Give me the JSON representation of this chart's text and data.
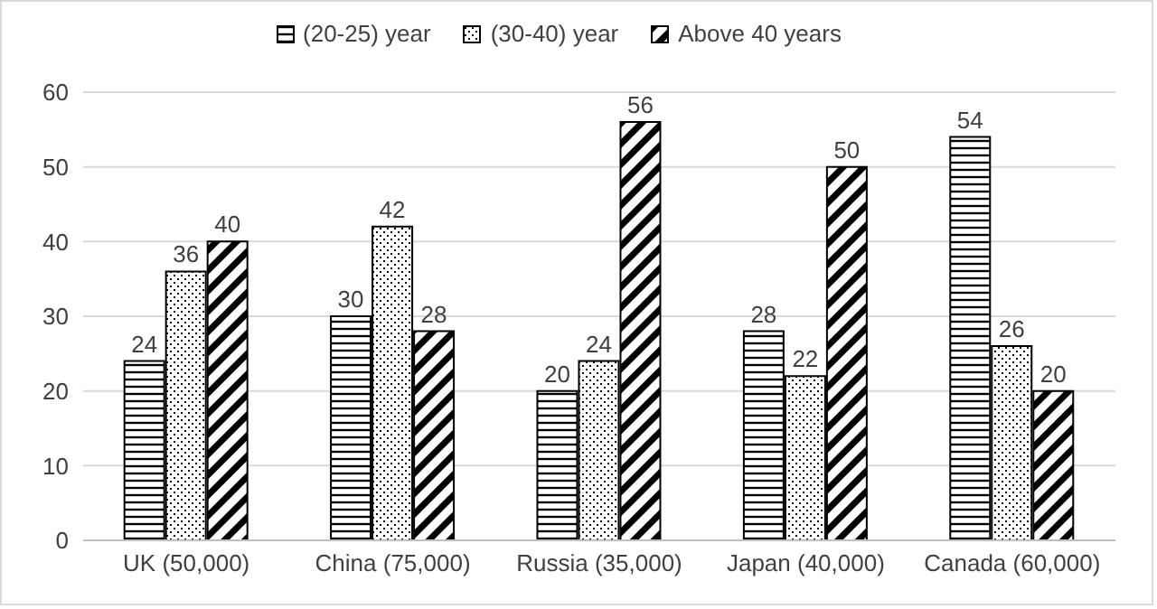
{
  "chart_data": {
    "type": "bar",
    "categories": [
      "UK (50,000)",
      "China (75,000)",
      "Russia (35,000)",
      "Japan (40,000)",
      "Canada (60,000)"
    ],
    "series": [
      {
        "name": "(20-25) year",
        "color": "#000000",
        "values": [
          24,
          30,
          20,
          28,
          54
        ]
      },
      {
        "name": "(30-40) year",
        "color": "#000000",
        "values": [
          36,
          42,
          24,
          22,
          26
        ]
      },
      {
        "name": "Above 40 years",
        "color": "#000000",
        "values": [
          40,
          28,
          56,
          50,
          20
        ]
      }
    ],
    "ylim": [
      0,
      60
    ],
    "yticks": [
      0,
      10,
      20,
      30,
      40,
      50,
      60
    ],
    "grid": "y",
    "legend": "top",
    "data_labels": true
  }
}
